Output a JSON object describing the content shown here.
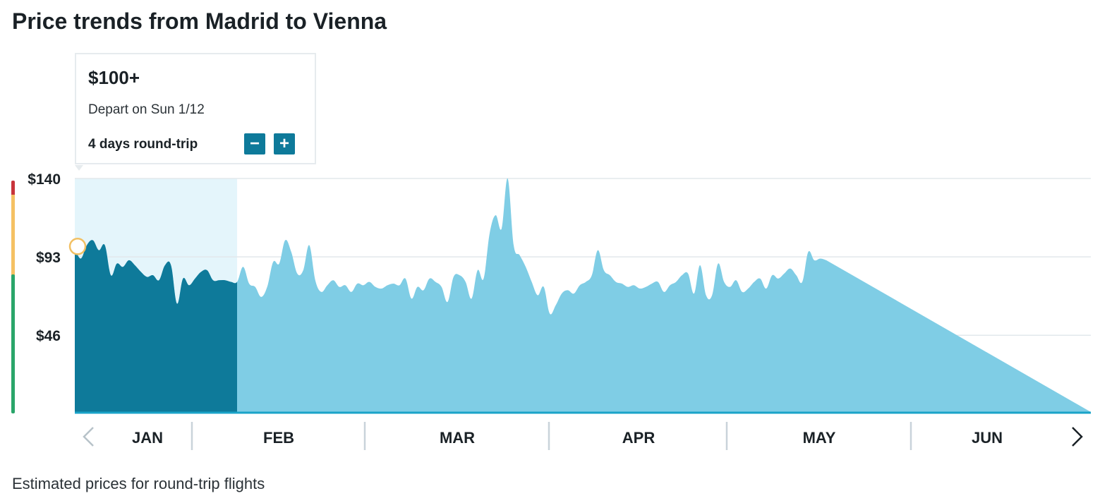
{
  "page": {
    "title": "Price trends from Madrid to Vienna",
    "footer": "Estimated prices for round-trip flights"
  },
  "tooltip": {
    "price": "$100+",
    "depart": "Depart on Sun 1/12",
    "trip_length": "4 days round-trip",
    "decrease_label": "−",
    "increase_label": "+"
  },
  "nav": {
    "prev_icon": "chevron-left-icon",
    "next_icon": "chevron-right-icon"
  },
  "colors": {
    "area_light": "#7fcde5",
    "area_selected": "#0e7a9a",
    "selection_band": "#e4f5fb",
    "baseline": "#1aa3c8",
    "grid": "#e2e8ec",
    "scale_high": "#c8343b",
    "scale_mid": "#f5c163",
    "scale_low": "#2aa56a",
    "marker": "#f2c063"
  },
  "chart_data": {
    "type": "area",
    "title": "Price trends from Madrid to Vienna",
    "y_ticks": [
      "$140",
      "$93",
      "$46"
    ],
    "y_tick_values": [
      140,
      93,
      46
    ],
    "ylim": [
      0,
      140
    ],
    "x_months": [
      "JAN",
      "FEB",
      "MAR",
      "APR",
      "MAY",
      "JUN"
    ],
    "x_start": "2025-01-12",
    "x_end": "2025-06-30",
    "selected_range": [
      "2025-01-12",
      "2025-02-08"
    ],
    "marker_date": "2025-01-12",
    "grid": true,
    "series": [
      {
        "points": [
          [
            "2025-01-12",
            98
          ],
          [
            "2025-01-13",
            92
          ],
          [
            "2025-01-14",
            100
          ],
          [
            "2025-01-15",
            103
          ],
          [
            "2025-01-16",
            97
          ],
          [
            "2025-01-17",
            100
          ],
          [
            "2025-01-18",
            82
          ],
          [
            "2025-01-19",
            89
          ],
          [
            "2025-01-20",
            87
          ],
          [
            "2025-01-21",
            91
          ],
          [
            "2025-01-22",
            88
          ],
          [
            "2025-01-23",
            84
          ],
          [
            "2025-01-24",
            81
          ],
          [
            "2025-01-25",
            82
          ],
          [
            "2025-01-26",
            79
          ],
          [
            "2025-01-27",
            88
          ],
          [
            "2025-01-28",
            88
          ],
          [
            "2025-01-29",
            65
          ],
          [
            "2025-01-30",
            80
          ],
          [
            "2025-01-31",
            76
          ],
          [
            "2025-02-01",
            80
          ],
          [
            "2025-02-02",
            84
          ],
          [
            "2025-02-03",
            85
          ],
          [
            "2025-02-04",
            79
          ],
          [
            "2025-02-05",
            79
          ],
          [
            "2025-02-06",
            79
          ],
          [
            "2025-02-07",
            78
          ],
          [
            "2025-02-08",
            78
          ],
          [
            "2025-02-09",
            87
          ],
          [
            "2025-02-10",
            77
          ],
          [
            "2025-02-11",
            75
          ],
          [
            "2025-02-12",
            69
          ],
          [
            "2025-02-13",
            75
          ],
          [
            "2025-02-14",
            90
          ],
          [
            "2025-02-15",
            89
          ],
          [
            "2025-02-16",
            103
          ],
          [
            "2025-02-17",
            96
          ],
          [
            "2025-02-18",
            83
          ],
          [
            "2025-02-19",
            85
          ],
          [
            "2025-02-20",
            100
          ],
          [
            "2025-02-21",
            79
          ],
          [
            "2025-02-22",
            72
          ],
          [
            "2025-02-23",
            76
          ],
          [
            "2025-02-24",
            79
          ],
          [
            "2025-02-25",
            75
          ],
          [
            "2025-02-26",
            76
          ],
          [
            "2025-02-27",
            72
          ],
          [
            "2025-02-28",
            77
          ],
          [
            "2025-03-01",
            76
          ],
          [
            "2025-03-02",
            78
          ],
          [
            "2025-03-03",
            75
          ],
          [
            "2025-03-04",
            74
          ],
          [
            "2025-03-05",
            76
          ],
          [
            "2025-03-06",
            77
          ],
          [
            "2025-03-07",
            76
          ],
          [
            "2025-03-08",
            80
          ],
          [
            "2025-03-09",
            68
          ],
          [
            "2025-03-10",
            75
          ],
          [
            "2025-03-11",
            73
          ],
          [
            "2025-03-12",
            80
          ],
          [
            "2025-03-13",
            78
          ],
          [
            "2025-03-14",
            75
          ],
          [
            "2025-03-15",
            66
          ],
          [
            "2025-03-16",
            81
          ],
          [
            "2025-03-17",
            82
          ],
          [
            "2025-03-18",
            78
          ],
          [
            "2025-03-19",
            68
          ],
          [
            "2025-03-20",
            85
          ],
          [
            "2025-03-21",
            80
          ],
          [
            "2025-03-22",
            107
          ],
          [
            "2025-03-23",
            118
          ],
          [
            "2025-03-24",
            110
          ],
          [
            "2025-03-25",
            140
          ],
          [
            "2025-03-26",
            100
          ],
          [
            "2025-03-27",
            94
          ],
          [
            "2025-03-28",
            87
          ],
          [
            "2025-03-29",
            78
          ],
          [
            "2025-03-30",
            70
          ],
          [
            "2025-03-31",
            75
          ],
          [
            "2025-04-01",
            59
          ],
          [
            "2025-04-02",
            64
          ],
          [
            "2025-04-03",
            71
          ],
          [
            "2025-04-04",
            73
          ],
          [
            "2025-04-05",
            71
          ],
          [
            "2025-04-06",
            76
          ],
          [
            "2025-04-07",
            78
          ],
          [
            "2025-04-08",
            82
          ],
          [
            "2025-04-09",
            97
          ],
          [
            "2025-04-10",
            85
          ],
          [
            "2025-04-11",
            82
          ],
          [
            "2025-04-12",
            78
          ],
          [
            "2025-04-13",
            77
          ],
          [
            "2025-04-14",
            75
          ],
          [
            "2025-04-15",
            76
          ],
          [
            "2025-04-16",
            74
          ],
          [
            "2025-04-17",
            75
          ],
          [
            "2025-04-18",
            77
          ],
          [
            "2025-04-19",
            78
          ],
          [
            "2025-04-20",
            72
          ],
          [
            "2025-04-21",
            76
          ],
          [
            "2025-04-22",
            78
          ],
          [
            "2025-04-23",
            82
          ],
          [
            "2025-04-24",
            83
          ],
          [
            "2025-04-25",
            71
          ],
          [
            "2025-04-26",
            88
          ],
          [
            "2025-04-27",
            70
          ],
          [
            "2025-04-28",
            70
          ],
          [
            "2025-04-29",
            89
          ],
          [
            "2025-04-30",
            78
          ],
          [
            "2025-05-01",
            75
          ],
          [
            "2025-05-02",
            79
          ],
          [
            "2025-05-03",
            72
          ],
          [
            "2025-05-04",
            74
          ],
          [
            "2025-05-05",
            78
          ],
          [
            "2025-05-06",
            80
          ],
          [
            "2025-05-07",
            74
          ],
          [
            "2025-05-08",
            82
          ],
          [
            "2025-05-09",
            80
          ],
          [
            "2025-05-10",
            83
          ],
          [
            "2025-05-11",
            86
          ],
          [
            "2025-05-12",
            82
          ],
          [
            "2025-05-13",
            78
          ],
          [
            "2025-05-14",
            96
          ],
          [
            "2025-05-15",
            91
          ],
          [
            "2025-05-16",
            92
          ],
          [
            "2025-05-17",
            91
          ]
        ]
      }
    ]
  }
}
